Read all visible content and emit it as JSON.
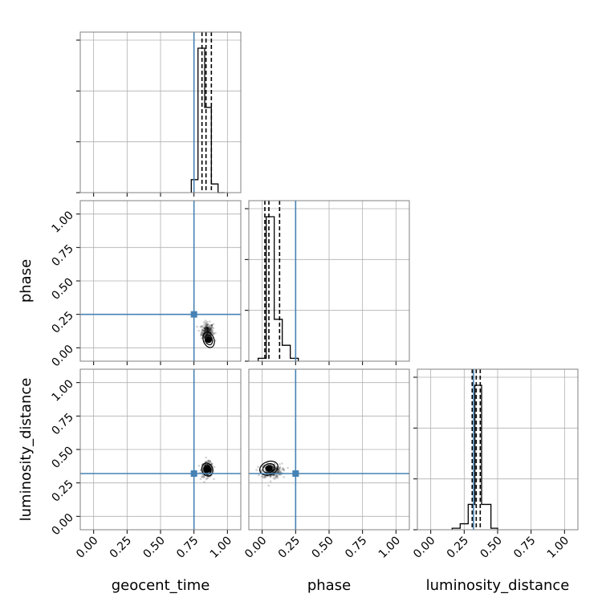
{
  "chart_data": {
    "type": "corner",
    "parameters": [
      "geocent_time",
      "phase",
      "luminosity_distance"
    ],
    "axis_range": [
      -0.1,
      1.1
    ],
    "ticks": [
      0.0,
      0.25,
      0.5,
      0.75,
      1.0
    ],
    "tick_labels": [
      "0.00",
      "0.25",
      "0.50",
      "0.75",
      "1.00"
    ],
    "grid": true,
    "truth_color": "#4682b4",
    "truths": {
      "geocent_time": 0.75,
      "phase": 0.25,
      "luminosity_distance": 0.32
    },
    "quantiles": {
      "geocent_time": [
        0.81,
        0.84,
        0.88
      ],
      "phase": [
        0.02,
        0.05,
        0.13
      ],
      "luminosity_distance": [
        0.31,
        0.34,
        0.37
      ]
    },
    "histograms": {
      "geocent_time": {
        "bin_edges": [
          0.73,
          0.78,
          0.83,
          0.88,
          0.93,
          0.98
        ],
        "counts": [
          0.09,
          1.0,
          0.59,
          0.06,
          0.0
        ]
      },
      "phase": {
        "bin_edges": [
          -0.03,
          0.03,
          0.09,
          0.15,
          0.21,
          0.27
        ],
        "counts": [
          0.02,
          1.0,
          0.29,
          0.11,
          0.02
        ]
      },
      "luminosity_distance": {
        "bin_edges": [
          0.16,
          0.22,
          0.28,
          0.33,
          0.38,
          0.45,
          0.5
        ],
        "counts": [
          0.01,
          0.04,
          0.17,
          0.97,
          0.17,
          0.01
        ]
      }
    },
    "samples_2d": [
      {
        "x": "geocent_time",
        "y": "phase",
        "center": [
          0.85,
          0.12
        ],
        "spread": [
          0.04,
          0.06
        ],
        "core": [
          0.86,
          0.06
        ]
      },
      {
        "x": "geocent_time",
        "y": "luminosity_distance",
        "center": [
          0.85,
          0.35
        ],
        "spread": [
          0.04,
          0.05
        ],
        "core": [
          0.85,
          0.35
        ]
      },
      {
        "x": "phase",
        "y": "luminosity_distance",
        "center": [
          0.07,
          0.34
        ],
        "spread": [
          0.07,
          0.05
        ],
        "core": [
          0.05,
          0.36
        ]
      }
    ]
  }
}
